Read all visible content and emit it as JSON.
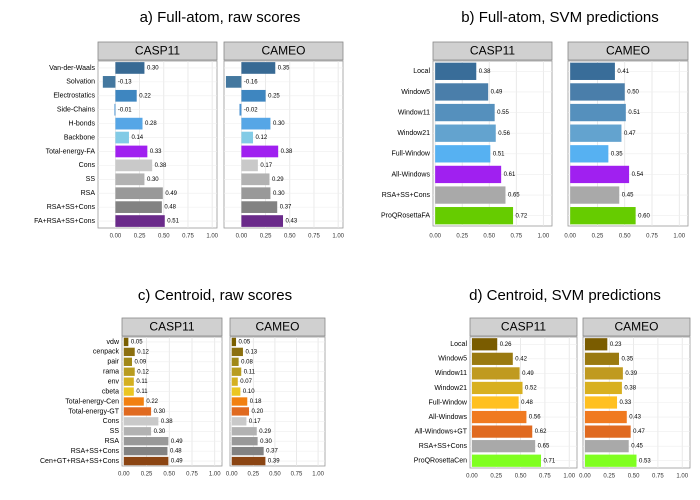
{
  "chart_data": [
    {
      "type": "bar",
      "title": "a) Full-atom, raw scores",
      "categories": [
        "Van-der-Waals",
        "Solvation",
        "Electrostatics",
        "Side-Chains",
        "H-bonds",
        "Backbone",
        "Total-energy-FA",
        "Cons",
        "SS",
        "RSA",
        "RSA+SS+Cons",
        "FA+RSA+SS+Cons"
      ],
      "colors": [
        "#386a94",
        "#44789f",
        "#3e86c0",
        "#4b93d2",
        "#56a6e6",
        "#82cbe6",
        "#a020f0",
        "#c9c9c9",
        "#b2b2b2",
        "#999999",
        "#828282",
        "#6a2a8a"
      ],
      "series": [
        {
          "name": "CASP11",
          "values": [
            0.3,
            -0.13,
            0.22,
            -0.01,
            0.28,
            0.14,
            0.33,
            0.38,
            0.3,
            0.49,
            0.48,
            0.51
          ],
          "value_labels": [
            "0.30",
            "-0.13",
            "0.22",
            "-0.01",
            "0.28",
            "0.14",
            "0.33",
            "0.38",
            "0.30",
            "0.49",
            "0.48",
            "0.51"
          ]
        },
        {
          "name": "CAMEO",
          "values": [
            0.35,
            -0.16,
            0.25,
            -0.02,
            0.3,
            0.12,
            0.38,
            0.17,
            0.29,
            0.3,
            0.37,
            0.43
          ],
          "value_labels": [
            "0.35",
            "-0.16",
            "0.25",
            "-0.02",
            "0.30",
            "0.12",
            "0.38",
            "0.17",
            "0.29",
            "0.30",
            "0.37",
            "0.43"
          ]
        }
      ],
      "xlim": [
        -0.18,
        1.05
      ],
      "xticks": [
        {
          "value": 0,
          "label": "0.00"
        },
        {
          "value": 0.25,
          "label": "0.25"
        },
        {
          "value": 0.5,
          "label": "0.50"
        },
        {
          "value": 0.75,
          "label": "0.75"
        },
        {
          "value": 1,
          "label": "1.00"
        }
      ],
      "grid": true
    },
    {
      "type": "bar",
      "title": "b) Full-atom, SVM predictions",
      "categories": [
        "Local",
        "Window5",
        "Window11",
        "Window21",
        "Full-Window",
        "All-Windows",
        "RSA+SS+Cons",
        "ProQRosettaFA"
      ],
      "colors": [
        "#396d99",
        "#4a7eaa",
        "#5590bd",
        "#63a3cf",
        "#56b1f2",
        "#a020f0",
        "#a9a9a9",
        "#66cc00"
      ],
      "series": [
        {
          "name": "CASP11",
          "values": [
            0.38,
            0.49,
            0.55,
            0.56,
            0.51,
            0.61,
            0.65,
            0.72
          ],
          "value_labels": [
            "0.38",
            "0.49",
            "0.55",
            "0.56",
            "0.51",
            "0.61",
            "0.65",
            "0.72"
          ]
        },
        {
          "name": "CAMEO",
          "values": [
            0.41,
            0.5,
            0.51,
            0.47,
            0.35,
            0.54,
            0.45,
            0.6
          ],
          "value_labels": [
            "0.41",
            "0.50",
            "0.51",
            "0.47",
            "0.35",
            "0.54",
            "0.45",
            "0.60"
          ]
        }
      ],
      "xlim": [
        -0.02,
        1.08
      ],
      "xticks": [
        {
          "value": 0,
          "label": "0.00"
        },
        {
          "value": 0.25,
          "label": "0.25"
        },
        {
          "value": 0.5,
          "label": "0.50"
        },
        {
          "value": 0.75,
          "label": "0.75"
        },
        {
          "value": 1,
          "label": "1.00"
        }
      ],
      "grid": true
    },
    {
      "type": "bar",
      "title": "c) Centroid, raw scores",
      "categories": [
        "vdw",
        "cenpack",
        "pair",
        "rama",
        "env",
        "cbeta",
        "Total-energy-Cen",
        "Total-energy-GT",
        "Cons",
        "SS",
        "RSA",
        "RSA+SS+Cons",
        "Cen+GT+RSA+SS+Cons"
      ],
      "colors": [
        "#7a5f00",
        "#8c7010",
        "#a08818",
        "#b89c20",
        "#d4b020",
        "#ebc622",
        "#f28010",
        "#e06a20",
        "#c9c9c9",
        "#b2b2b2",
        "#999999",
        "#828282",
        "#8b4513"
      ],
      "series": [
        {
          "name": "CASP11",
          "values": [
            0.05,
            0.12,
            0.09,
            0.12,
            0.11,
            0.11,
            0.22,
            0.3,
            0.38,
            0.3,
            0.49,
            0.48,
            0.49
          ],
          "value_labels": [
            "0.05",
            "0.12",
            "0.09",
            "0.12",
            "0.11",
            "0.11",
            "0.22",
            "0.30",
            "0.38",
            "0.30",
            "0.49",
            "0.48",
            "0.49"
          ]
        },
        {
          "name": "CAMEO",
          "values": [
            0.05,
            0.13,
            0.08,
            0.11,
            0.07,
            0.1,
            0.18,
            0.2,
            0.17,
            0.29,
            0.3,
            0.37,
            0.39
          ],
          "value_labels": [
            "0.05",
            "0.13",
            "0.08",
            "0.11",
            "0.07",
            "0.10",
            "0.18",
            "0.20",
            "0.17",
            "0.29",
            "0.30",
            "0.37",
            "0.39"
          ]
        }
      ],
      "xlim": [
        -0.02,
        1.08
      ],
      "xticks": [
        {
          "value": 0,
          "label": "0.00"
        },
        {
          "value": 0.25,
          "label": "0.25"
        },
        {
          "value": 0.5,
          "label": "0.50"
        },
        {
          "value": 0.75,
          "label": "0.75"
        },
        {
          "value": 1,
          "label": "1.00"
        }
      ],
      "grid": true
    },
    {
      "type": "bar",
      "title": "d) Centroid, SVM predictions",
      "categories": [
        "Local",
        "Window5",
        "Window11",
        "Window21",
        "Full-Window",
        "All-Windows",
        "All-Windows+GT",
        "RSA+SS+Cons",
        "ProQRosettaCen"
      ],
      "colors": [
        "#7a5c00",
        "#9a7a10",
        "#c09a20",
        "#d8b020",
        "#ffc020",
        "#f07a20",
        "#e06a20",
        "#a9a9a9",
        "#80ff20"
      ],
      "series": [
        {
          "name": "CASP11",
          "values": [
            0.26,
            0.42,
            0.49,
            0.52,
            0.48,
            0.56,
            0.62,
            0.65,
            0.71
          ],
          "value_labels": [
            "0.26",
            "0.42",
            "0.49",
            "0.52",
            "0.48",
            "0.56",
            "0.62",
            "0.65",
            "0.71"
          ]
        },
        {
          "name": "CAMEO",
          "values": [
            0.23,
            0.35,
            0.39,
            0.38,
            0.33,
            0.43,
            0.47,
            0.45,
            0.53
          ],
          "value_labels": [
            "0.23",
            "0.35",
            "0.39",
            "0.38",
            "0.33",
            "0.43",
            "0.47",
            "0.45",
            "0.53"
          ]
        }
      ],
      "xlim": [
        -0.02,
        1.08
      ],
      "xticks": [
        {
          "value": 0,
          "label": "0.00"
        },
        {
          "value": 0.25,
          "label": "0.25"
        },
        {
          "value": 0.5,
          "label": "0.50"
        },
        {
          "value": 0.75,
          "label": "0.75"
        },
        {
          "value": 1,
          "label": "1.00"
        }
      ],
      "grid": true
    }
  ]
}
